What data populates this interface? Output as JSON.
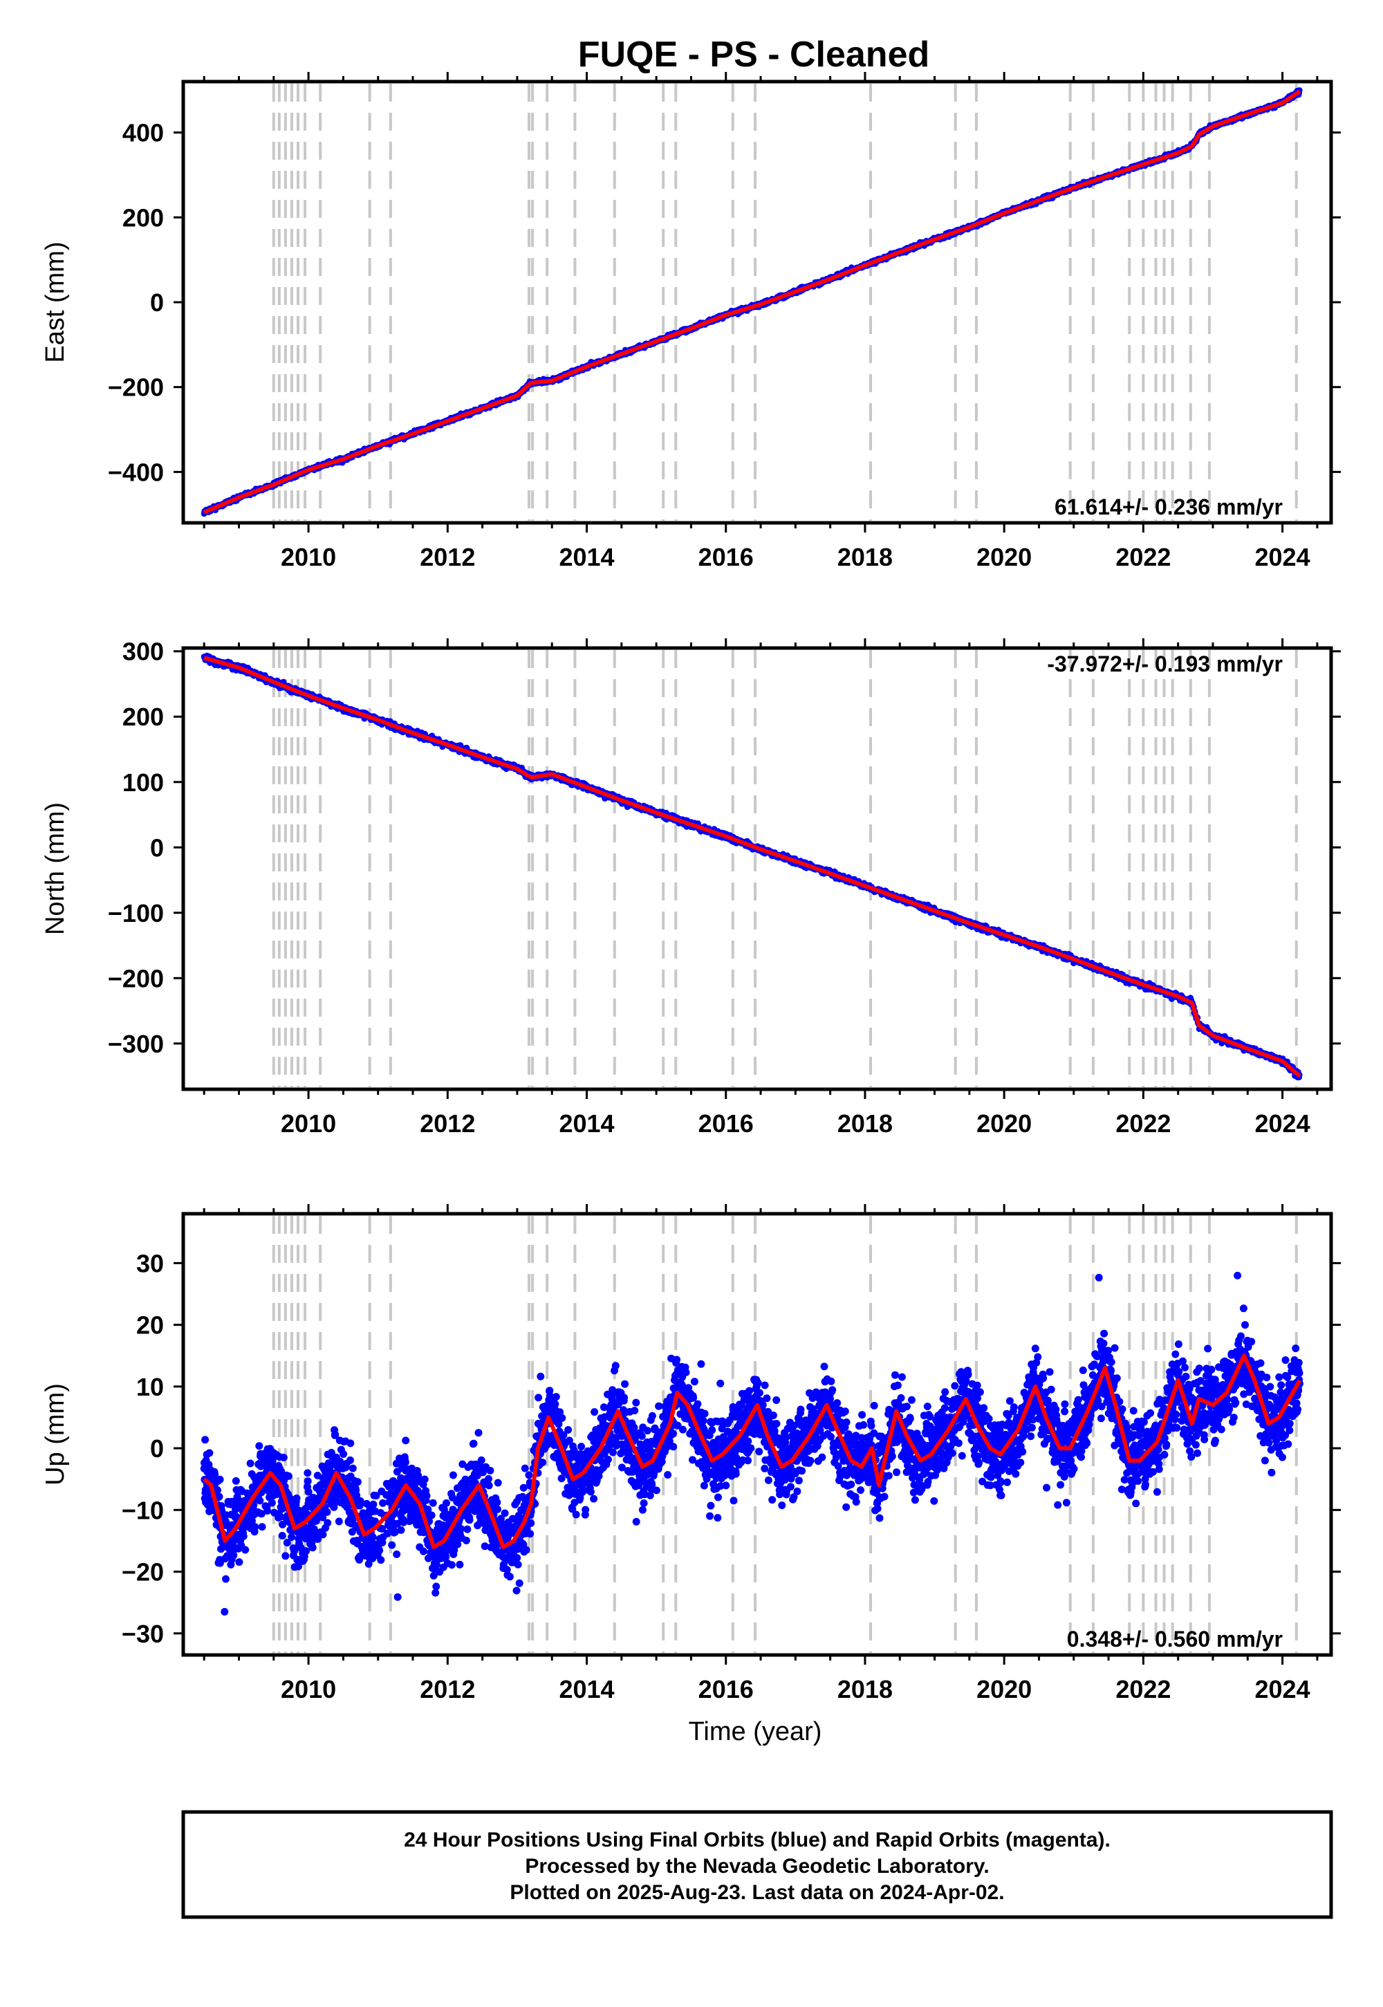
{
  "title": "FUQE  - PS - Cleaned",
  "footer": {
    "line1": "24 Hour Positions Using Final Orbits (blue) and Rapid Orbits (magenta).",
    "line2": "Processed by the Nevada Geodetic Laboratory.",
    "line3": "Plotted on 2025-Aug-23. Last data on 2024-Apr-02."
  },
  "colors": {
    "points": "#0000ff",
    "fit": "#ff0000",
    "events": "#c8c8c8"
  },
  "chart_data": [
    {
      "type": "scatter",
      "panel": "east",
      "ylabel": "East (mm)",
      "xlabel": "",
      "xlim": [
        2008.2,
        2024.7
      ],
      "ylim": [
        -520,
        520
      ],
      "xticks": [
        2010,
        2012,
        2014,
        2016,
        2018,
        2020,
        2022,
        2024
      ],
      "yticks": [
        -400,
        -200,
        0,
        200,
        400
      ],
      "ytick_labels": [
        "−400",
        "−200",
        "0",
        "200",
        "400"
      ],
      "rate": "61.614+/- 0.236 mm/yr",
      "rate_position": "bottom-right",
      "series": [
        {
          "x": [
            2008.5,
            2009.0,
            2009.5,
            2010.0,
            2010.5,
            2011.0,
            2011.5,
            2012.0,
            2012.5,
            2013.0,
            2013.2,
            2013.5,
            2014.0,
            2014.5,
            2015.0,
            2015.5,
            2016.0,
            2016.5,
            2017.0,
            2017.5,
            2018.0,
            2018.5,
            2019.0,
            2019.5,
            2020.0,
            2020.5,
            2021.0,
            2021.5,
            2022.0,
            2022.5,
            2022.7,
            2022.8,
            2023.0,
            2023.5,
            2024.0,
            2024.25
          ],
          "y": [
            -495,
            -460,
            -430,
            -395,
            -370,
            -338,
            -310,
            -280,
            -250,
            -220,
            -190,
            -185,
            -152,
            -122,
            -92,
            -62,
            -30,
            -5,
            25,
            55,
            87,
            118,
            148,
            177,
            210,
            240,
            270,
            298,
            325,
            352,
            368,
            395,
            415,
            443,
            470,
            497
          ]
        }
      ]
    },
    {
      "type": "scatter",
      "panel": "north",
      "ylabel": "North (mm)",
      "xlabel": "",
      "xlim": [
        2008.2,
        2024.7
      ],
      "ylim": [
        -370,
        305
      ],
      "xticks": [
        2010,
        2012,
        2014,
        2016,
        2018,
        2020,
        2022,
        2024
      ],
      "yticks": [
        -300,
        -200,
        -100,
        0,
        100,
        200,
        300
      ],
      "ytick_labels": [
        "−300",
        "−200",
        "−100",
        "0",
        "100",
        "200",
        "300"
      ],
      "rate": "-37.972+/- 0.193 mm/yr",
      "rate_position": "top-right",
      "series": [
        {
          "x": [
            2008.5,
            2009.0,
            2009.5,
            2010.0,
            2010.5,
            2011.0,
            2011.5,
            2012.0,
            2012.5,
            2013.0,
            2013.2,
            2013.5,
            2014.0,
            2014.5,
            2015.0,
            2015.5,
            2016.0,
            2016.5,
            2017.0,
            2017.5,
            2018.0,
            2018.5,
            2019.0,
            2019.5,
            2020.0,
            2020.5,
            2021.0,
            2021.5,
            2022.0,
            2022.5,
            2022.7,
            2022.8,
            2023.0,
            2023.5,
            2024.0,
            2024.25
          ],
          "y": [
            290,
            275,
            253,
            232,
            213,
            195,
            175,
            157,
            138,
            120,
            107,
            112,
            92,
            72,
            53,
            35,
            17,
            -3,
            -21,
            -40,
            -59,
            -78,
            -97,
            -116,
            -134,
            -152,
            -171,
            -191,
            -210,
            -228,
            -238,
            -272,
            -288,
            -308,
            -327,
            -350
          ]
        }
      ]
    },
    {
      "type": "scatter",
      "panel": "up",
      "ylabel": "Up (mm)",
      "xlabel": "Time (year)",
      "xlim": [
        2008.2,
        2024.7
      ],
      "ylim": [
        -33.5,
        38
      ],
      "xticks": [
        2010,
        2012,
        2014,
        2016,
        2018,
        2020,
        2022,
        2024
      ],
      "yticks": [
        -30,
        -20,
        -10,
        0,
        10,
        20,
        30
      ],
      "ytick_labels": [
        "−30",
        "−20",
        "−10",
        "0",
        "10",
        "20",
        "30"
      ],
      "rate": "0.348+/- 0.560 mm/yr",
      "rate_position": "bottom-right",
      "series": [
        {
          "x": [
            2008.5,
            2008.6,
            2008.8,
            2008.95,
            2009.2,
            2009.45,
            2009.6,
            2009.8,
            2009.95,
            2010.2,
            2010.4,
            2010.6,
            2010.8,
            2010.95,
            2011.2,
            2011.4,
            2011.6,
            2011.8,
            2011.95,
            2012.2,
            2012.45,
            2012.6,
            2012.8,
            2012.95,
            2013.1,
            2013.2,
            2013.3,
            2013.45,
            2013.6,
            2013.8,
            2013.95,
            2014.2,
            2014.45,
            2014.6,
            2014.8,
            2014.95,
            2015.2,
            2015.3,
            2015.45,
            2015.6,
            2015.8,
            2015.95,
            2016.2,
            2016.45,
            2016.6,
            2016.8,
            2016.95,
            2017.2,
            2017.45,
            2017.6,
            2017.8,
            2017.95,
            2018.1,
            2018.2,
            2018.45,
            2018.6,
            2018.8,
            2018.95,
            2019.2,
            2019.45,
            2019.6,
            2019.8,
            2019.95,
            2020.2,
            2020.45,
            2020.6,
            2020.8,
            2020.95,
            2021.2,
            2021.45,
            2021.6,
            2021.8,
            2021.95,
            2022.2,
            2022.5,
            2022.7,
            2022.8,
            2023.0,
            2023.2,
            2023.45,
            2023.6,
            2023.8,
            2023.95,
            2024.25
          ],
          "y": [
            -5,
            -6,
            -15,
            -13,
            -8,
            -4,
            -6,
            -13,
            -12,
            -9,
            -4,
            -8,
            -14,
            -13,
            -10,
            -6,
            -9,
            -16,
            -15,
            -10,
            -6,
            -10,
            -16,
            -15,
            -12,
            -9,
            0,
            5,
            1,
            -5,
            -4,
            0,
            6,
            2,
            -3,
            -2,
            4,
            9,
            7,
            3,
            -2,
            -1,
            2,
            7,
            2,
            -3,
            -2,
            2,
            7,
            3,
            -2,
            -3,
            0,
            -6,
            6,
            2,
            -2,
            -1,
            3,
            8,
            4,
            0,
            -1,
            3,
            10,
            5,
            0,
            0,
            6,
            13,
            7,
            -2,
            -2,
            1,
            11,
            4,
            8,
            7,
            9,
            15,
            11,
            4,
            5,
            11
          ]
        }
      ]
    }
  ],
  "events": [
    2009.5,
    2009.58,
    2009.67,
    2009.76,
    2009.85,
    2009.95,
    2010.17,
    2010.88,
    2011.18,
    2013.17,
    2013.22,
    2013.43,
    2013.83,
    2014.4,
    2015.1,
    2015.28,
    2016.1,
    2016.42,
    2018.08,
    2019.3,
    2019.6,
    2020.95,
    2021.28,
    2021.8,
    2022.0,
    2022.18,
    2022.3,
    2022.42,
    2022.68,
    2022.95,
    2024.2
  ]
}
